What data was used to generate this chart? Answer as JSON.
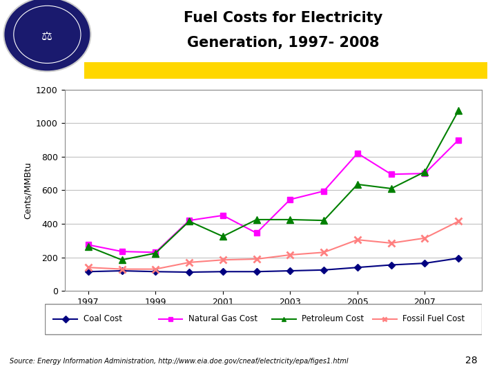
{
  "title_line1": "Fuel Costs for Electricity",
  "title_line2": "Generation, 1997- 2008",
  "ylabel": "Cents/MMBtu",
  "years": [
    1997,
    1998,
    1999,
    2000,
    2001,
    2002,
    2003,
    2004,
    2005,
    2006,
    2007,
    2008
  ],
  "coal": [
    115,
    120,
    115,
    112,
    115,
    115,
    120,
    125,
    140,
    155,
    165,
    195
  ],
  "natural_gas": [
    275,
    235,
    230,
    420,
    450,
    345,
    545,
    595,
    820,
    695,
    700,
    900
  ],
  "petroleum": [
    265,
    185,
    225,
    415,
    325,
    425,
    425,
    420,
    635,
    610,
    710,
    1075
  ],
  "fossil_fuel": [
    140,
    130,
    130,
    170,
    185,
    190,
    215,
    230,
    305,
    285,
    315,
    415
  ],
  "coal_color": "#000080",
  "natural_gas_color": "#FF00FF",
  "petroleum_color": "#008000",
  "fossil_fuel_color": "#FF8080",
  "bg_color": "#FFFFFF",
  "plot_bg": "#FFFFFF",
  "grid_color": "#C0C0C0",
  "ylim": [
    0,
    1200
  ],
  "yticks": [
    0,
    200,
    400,
    600,
    800,
    1000,
    1200
  ],
  "xticks": [
    1997,
    1999,
    2001,
    2003,
    2005,
    2007
  ],
  "source_text": "Source: Energy Information Administration, http://www.eia.doe.gov/cneaf/electricity/epa/figes1.html",
  "highlight_color": "#FFD700",
  "logo_color": "#1a1a6e",
  "page_num": "28"
}
